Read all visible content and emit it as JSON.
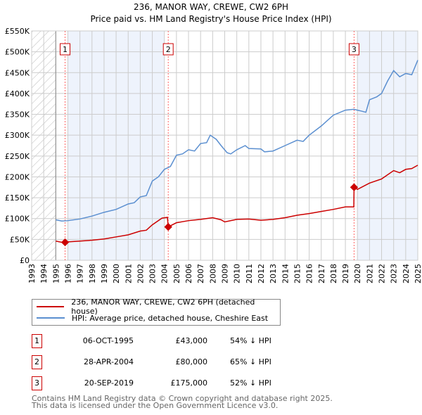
{
  "title": "236, MANOR WAY, CREWE, CW2 6PH",
  "subtitle": "Price paid vs. HM Land Registry's House Price Index (HPI)",
  "colors": {
    "property": "#cc0000",
    "hpi": "#5b8fd0",
    "shade": "#eef3fc"
  },
  "chart_data": {
    "type": "line",
    "title": "236, MANOR WAY, CREWE, CW2 6PH",
    "subtitle": "Price paid vs. HM Land Registry's House Price Index (HPI)",
    "xlim": [
      1993,
      2025
    ],
    "ylim": [
      0,
      550000
    ],
    "x_ticks": [
      "1993",
      "1994",
      "1995",
      "1996",
      "1997",
      "1998",
      "1999",
      "2000",
      "2001",
      "2002",
      "2003",
      "2004",
      "2005",
      "2006",
      "2007",
      "2008",
      "2009",
      "2010",
      "2011",
      "2012",
      "2013",
      "2014",
      "2015",
      "2016",
      "2017",
      "2018",
      "2019",
      "2020",
      "2021",
      "2022",
      "2023",
      "2024",
      "2025"
    ],
    "y_ticks": [
      {
        "v": 0,
        "label": "£0"
      },
      {
        "v": 50000,
        "label": "£50K"
      },
      {
        "v": 100000,
        "label": "£100K"
      },
      {
        "v": 150000,
        "label": "£150K"
      },
      {
        "v": 200000,
        "label": "£200K"
      },
      {
        "v": 250000,
        "label": "£250K"
      },
      {
        "v": 300000,
        "label": "£300K"
      },
      {
        "v": 350000,
        "label": "£350K"
      },
      {
        "v": 400000,
        "label": "£400K"
      },
      {
        "v": 450000,
        "label": "£450K"
      },
      {
        "v": 500000,
        "label": "£500K"
      },
      {
        "v": 550000,
        "label": "£550K"
      }
    ],
    "grid": true,
    "series": [
      {
        "name": "236, MANOR WAY, CREWE, CW2 6PH (detached house)",
        "color": "#cc0000",
        "x": [
          1995,
          1995.5,
          1995.77,
          1996,
          1997,
          1998,
          1999,
          2000,
          2001,
          2002,
          2002.5,
          2003,
          2003.8,
          2004.25,
          2004.32,
          2005,
          2006,
          2007,
          2008,
          2008.7,
          2009,
          2010,
          2011,
          2012,
          2013,
          2014,
          2015,
          2016,
          2017,
          2018,
          2019,
          2019.7,
          2019.72,
          2020,
          2021,
          2022,
          2023,
          2023.5,
          2024,
          2024.5,
          2025
        ],
        "y": [
          46000,
          43000,
          43000,
          44000,
          46000,
          48000,
          51000,
          56000,
          61000,
          70000,
          72000,
          85000,
          101000,
          103000,
          80000,
          90000,
          95000,
          98000,
          102000,
          97000,
          92000,
          98000,
          99000,
          96000,
          98000,
          102000,
          108000,
          112000,
          117000,
          122000,
          128000,
          128000,
          175000,
          170000,
          185000,
          195000,
          215000,
          210000,
          218000,
          220000,
          228000
        ]
      },
      {
        "name": "HPI: Average price, detached house, Cheshire East",
        "color": "#5b8fd0",
        "x": [
          1995,
          1995.5,
          1996,
          1997,
          1998,
          1999,
          2000,
          2001,
          2001.5,
          2002,
          2002.5,
          2003,
          2003.5,
          2004,
          2004.5,
          2005,
          2005.5,
          2006,
          2006.5,
          2007,
          2007.5,
          2007.8,
          2008.3,
          2008.7,
          2009.2,
          2009.5,
          2010,
          2010.7,
          2011,
          2012,
          2012.3,
          2013,
          2014,
          2015,
          2015.5,
          2016,
          2017,
          2018,
          2019,
          2019.7,
          2020.3,
          2020.7,
          2021,
          2021.6,
          2022,
          2022.5,
          2023,
          2023.5,
          2024,
          2024.5,
          2025
        ],
        "y": [
          97000,
          94000,
          95000,
          99000,
          106000,
          115000,
          122000,
          135000,
          138000,
          152000,
          155000,
          190000,
          200000,
          218000,
          225000,
          252000,
          255000,
          265000,
          262000,
          280000,
          282000,
          300000,
          290000,
          275000,
          258000,
          255000,
          265000,
          275000,
          268000,
          267000,
          260000,
          262000,
          275000,
          288000,
          285000,
          300000,
          322000,
          348000,
          360000,
          362000,
          358000,
          355000,
          385000,
          392000,
          400000,
          430000,
          455000,
          440000,
          448000,
          445000,
          480000
        ]
      }
    ],
    "sales": [
      {
        "n": "1",
        "x": 1995.77,
        "y": 43000
      },
      {
        "n": "2",
        "x": 2004.32,
        "y": 80000
      },
      {
        "n": "3",
        "x": 2019.72,
        "y": 175000
      }
    ],
    "shaded_ranges": [
      [
        1996,
        2004
      ],
      [
        2020,
        2025
      ]
    ],
    "hatched_range": [
      1993,
      1995
    ],
    "legend_placement": "below"
  },
  "legend": [
    {
      "label": "236, MANOR WAY, CREWE, CW2 6PH (detached house)"
    },
    {
      "label": "HPI: Average price, detached house, Cheshire East"
    }
  ],
  "transactions": [
    {
      "n": "1",
      "date": "06-OCT-1995",
      "price": "£43,000",
      "hpi": "54% ↓ HPI"
    },
    {
      "n": "2",
      "date": "28-APR-2004",
      "price": "£80,000",
      "hpi": "65% ↓ HPI"
    },
    {
      "n": "3",
      "date": "20-SEP-2019",
      "price": "£175,000",
      "hpi": "52% ↓ HPI"
    }
  ],
  "footer": [
    "Contains HM Land Registry data © Crown copyright and database right 2025.",
    "This data is licensed under the Open Government Licence v3.0."
  ]
}
